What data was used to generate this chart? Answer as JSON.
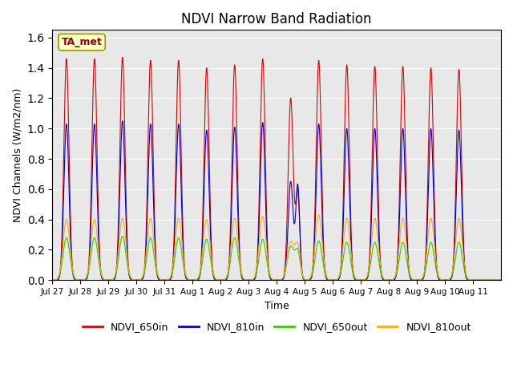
{
  "title": "NDVI Narrow Band Radiation",
  "ylabel": "NDVI Channels (W/m2/nm)",
  "xlabel": "Time",
  "annotation": "TA_met",
  "background_color": "#e8e8e8",
  "ylim": [
    0.0,
    1.65
  ],
  "yticks": [
    0.0,
    0.2,
    0.4,
    0.6,
    0.8,
    1.0,
    1.2,
    1.4,
    1.6
  ],
  "xtick_labels": [
    "Jul 27",
    "Jul 28",
    "Jul 29",
    "Jul 30",
    "Jul 31",
    "Aug 1",
    "Aug 2",
    "Aug 3",
    "Aug 4",
    "Aug 5",
    "Aug 6",
    "Aug 7",
    "Aug 8",
    "Aug 9",
    "Aug 10",
    "Aug 11"
  ],
  "n_days": 16,
  "sigma_in": 0.09,
  "sigma_out": 0.12,
  "peaks_650in": [
    1.46,
    1.46,
    1.47,
    1.45,
    1.45,
    1.4,
    1.42,
    1.46,
    1.2,
    1.45,
    1.42,
    1.41,
    1.41,
    1.4,
    1.39,
    0.0
  ],
  "peaks_810in": [
    1.03,
    1.03,
    1.05,
    1.03,
    1.03,
    0.99,
    1.01,
    1.04,
    0.65,
    1.03,
    1.0,
    1.0,
    1.0,
    1.0,
    0.99,
    0.0
  ],
  "peaks_650out": [
    0.28,
    0.28,
    0.29,
    0.28,
    0.28,
    0.27,
    0.28,
    0.27,
    0.22,
    0.26,
    0.25,
    0.25,
    0.25,
    0.25,
    0.25,
    0.0
  ],
  "peaks_810out": [
    0.4,
    0.4,
    0.41,
    0.41,
    0.41,
    0.4,
    0.41,
    0.42,
    0.25,
    0.43,
    0.41,
    0.41,
    0.41,
    0.41,
    0.41,
    0.0
  ],
  "color_650in": "#dd0000",
  "color_810in": "#0000cc",
  "color_650out": "#33cc00",
  "color_810out": "#ffaa00",
  "legend_entries": [
    {
      "label": "NDVI_650in",
      "color": "#dd0000"
    },
    {
      "label": "NDVI_810in",
      "color": "#0000cc"
    },
    {
      "label": "NDVI_650out",
      "color": "#33cc00"
    },
    {
      "label": "NDVI_810out",
      "color": "#ffaa00"
    }
  ]
}
